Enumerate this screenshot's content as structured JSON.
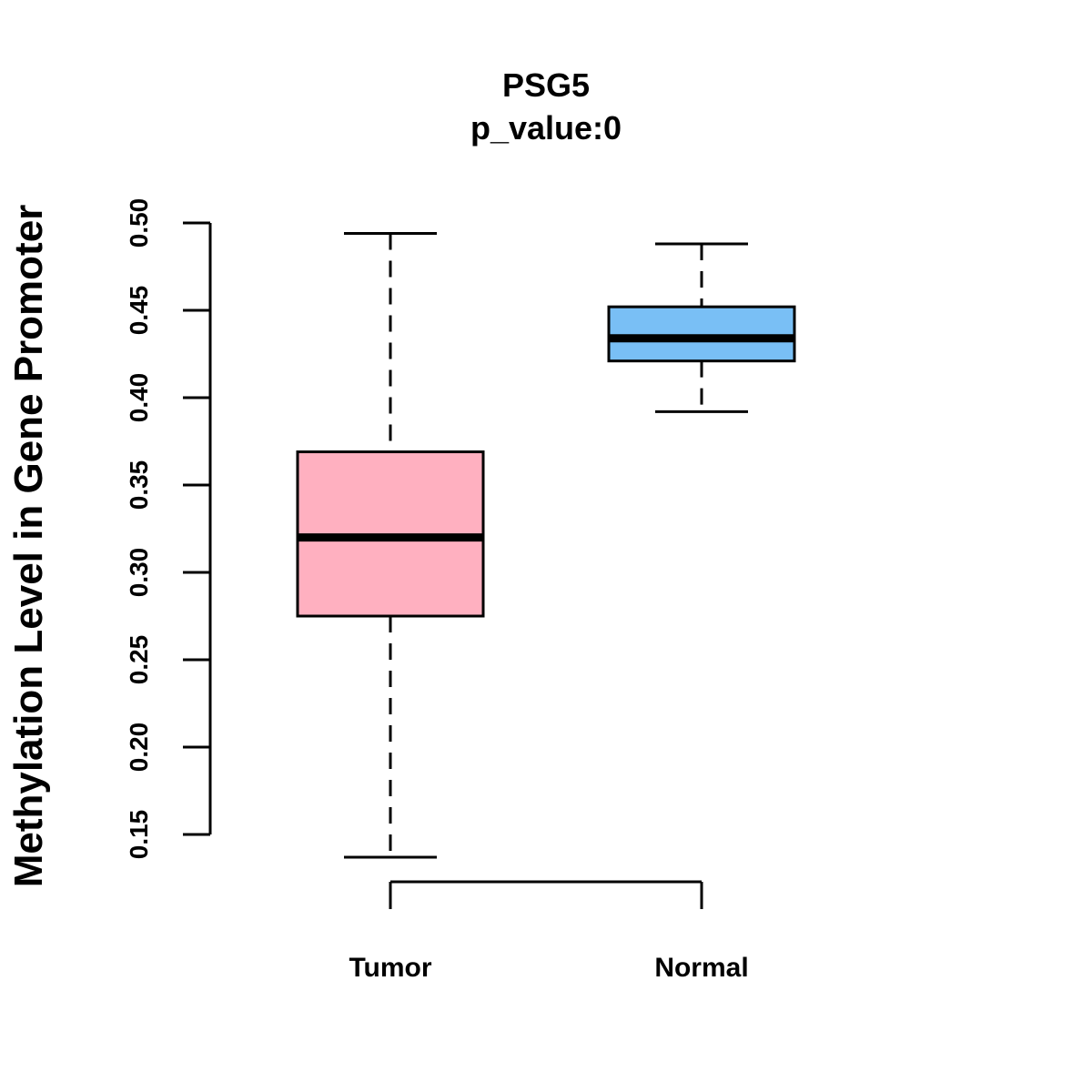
{
  "chart_data": {
    "type": "boxplot",
    "title": "PSG5",
    "subtitle": "p_value:0",
    "xlabel": "",
    "ylabel": "Methylation Level in Gene Promoter",
    "ylim": [
      0.15,
      0.5
    ],
    "yticks": [
      "0.15",
      "0.20",
      "0.25",
      "0.30",
      "0.35",
      "0.40",
      "0.45",
      "0.50"
    ],
    "grid": false,
    "categories": [
      "Tumor",
      "Normal"
    ],
    "boxes": [
      {
        "name": "Tumor",
        "min": 0.137,
        "q1": 0.275,
        "median": 0.32,
        "q3": 0.369,
        "max": 0.494,
        "color": "#FFB0C0"
      },
      {
        "name": "Normal",
        "min": 0.392,
        "q1": 0.421,
        "median": 0.434,
        "q3": 0.452,
        "max": 0.488,
        "color": "#79BFF5"
      }
    ]
  }
}
